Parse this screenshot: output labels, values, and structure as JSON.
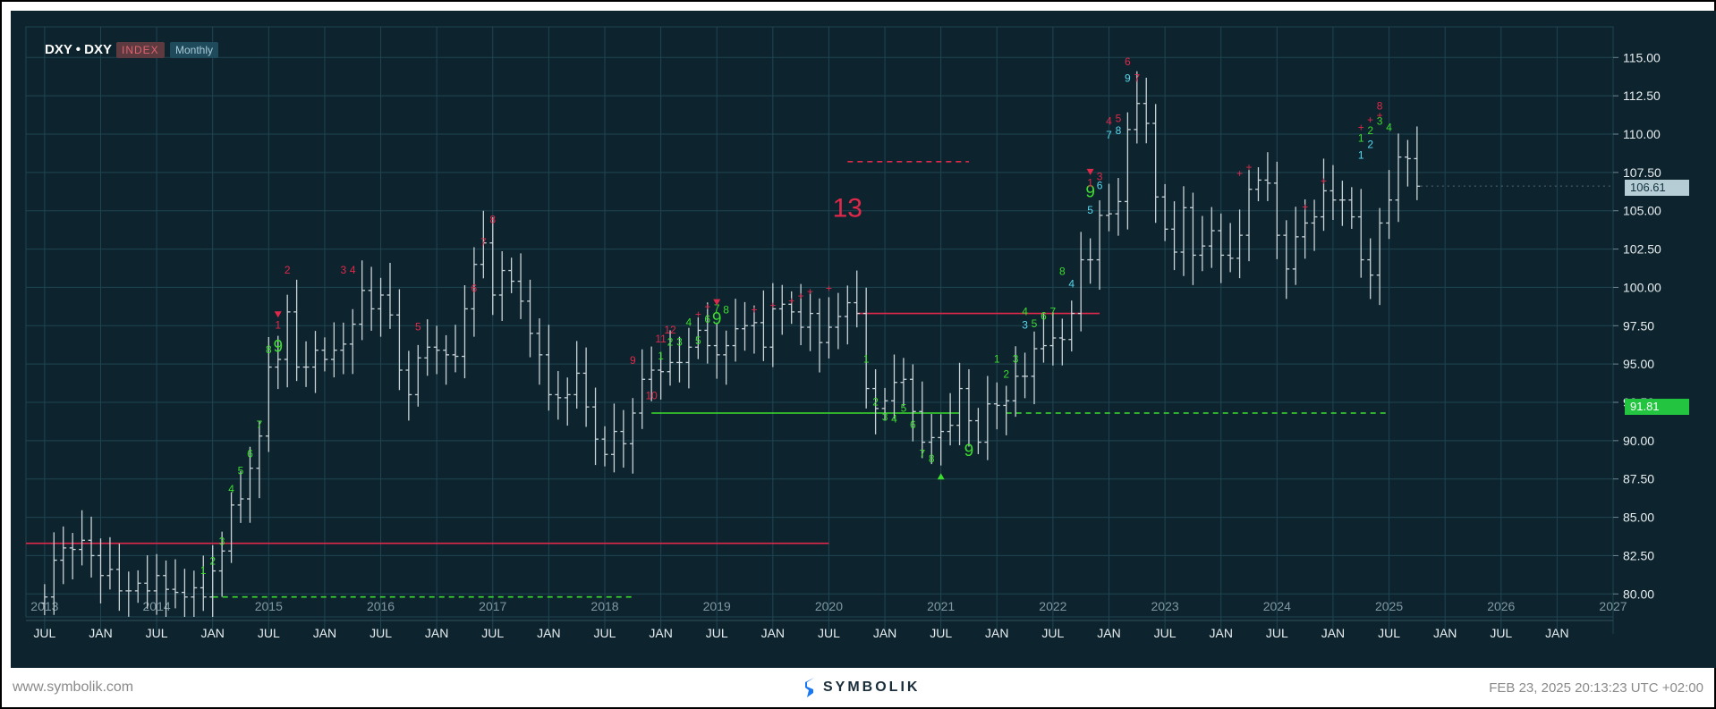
{
  "header": {
    "symbol": "DXY • DXY",
    "badge_index": "INDEX",
    "badge_period": "Monthly"
  },
  "footer": {
    "website": "www.symbolik.com",
    "brand": "SYMBOLIK",
    "timestamp": "FEB 23, 2025 20:13:23 UTC +02:00"
  },
  "price_tags": {
    "last_price": "106.61",
    "level": "91.81"
  },
  "colors": {
    "background": "#0d242e",
    "grid": "#1f4552",
    "bars": "#c9d3d8",
    "buy_setup": "#3ddc2e",
    "sell_setup": "#e0284a",
    "countdown_cyan": "#58d8ee",
    "tdst_support": "#3ddc2e",
    "tdst_resistance": "#e0284a"
  },
  "chart_data": {
    "type": "ohlc",
    "title": "DXY • DXY",
    "interval": "Monthly",
    "x_range": [
      "2012-11",
      "2027-01"
    ],
    "ylim": [
      78.5,
      117.0
    ],
    "y_ticks": [
      "80.00",
      "82.50",
      "85.00",
      "87.50",
      "90.00",
      "92.50",
      "95.00",
      "97.50",
      "100.00",
      "102.50",
      "105.00",
      "107.50",
      "110.00",
      "112.50",
      "115.00"
    ],
    "year_labels": [
      "2013",
      "2014",
      "2015",
      "2016",
      "2017",
      "2018",
      "2019",
      "2020",
      "2021",
      "2022",
      "2023",
      "2024",
      "2025",
      "2026",
      "2027"
    ],
    "month_labels": [
      "JUL",
      "JAN",
      "JUL",
      "JAN",
      "JUL",
      "JAN",
      "JUL",
      "JAN",
      "JUL",
      "JAN",
      "JUL",
      "JAN",
      "JUL",
      "JAN",
      "JUL",
      "JAN",
      "JUL",
      "JAN",
      "JUL",
      "JAN",
      "JUL",
      "JAN",
      "JUL",
      "JAN",
      "JUL",
      "JAN",
      "JUL",
      "JAN"
    ],
    "grid": true,
    "last_price": 106.61,
    "bars": {
      "start": "2013-01",
      "close": [
        79.8,
        82.2,
        83.0,
        82.9,
        83.5,
        82.5,
        81.2,
        81.6,
        80.2,
        80.2,
        80.7,
        80.2,
        81.2,
        80.3,
        80.1,
        79.8,
        80.4,
        79.8,
        81.5,
        82.8,
        85.8,
        86.2,
        88.2,
        90.3,
        94.8,
        95.3,
        98.4,
        94.8,
        94.8,
        95.9,
        95.3,
        95.9,
        96.3,
        97.6,
        99.8,
        98.6,
        99.5,
        98.2,
        94.6,
        93.0,
        95.4,
        96.1,
        95.9,
        95.6,
        95.5,
        98.6,
        101.5,
        102.9,
        99.5,
        101.1,
        100.4,
        99.1,
        97.0,
        95.6,
        93.0,
        92.8,
        93.0,
        94.4,
        92.2,
        90.1,
        89.1,
        90.6,
        89.8,
        91.8,
        94.0,
        94.6,
        94.5,
        95.1,
        95.1,
        96.1,
        97.2,
        96.2,
        95.6,
        96.2,
        97.3,
        97.5,
        97.7,
        96.1,
        98.6,
        98.9,
        98.4,
        97.4,
        98.3,
        96.4,
        97.4,
        98.1,
        99.0,
        98.3,
        93.4,
        92.1,
        92.6,
        93.8,
        94.0,
        91.9,
        89.9,
        90.2,
        90.6,
        91.0,
        93.4,
        91.3,
        89.9,
        92.4,
        92.3,
        92.6,
        94.2,
        94.2,
        96.0,
        96.2,
        96.7,
        96.6,
        98.3,
        101.8,
        101.8,
        104.7,
        104.8,
        105.6,
        110.3,
        112.0,
        110.7,
        105.9,
        103.8,
        102.3,
        105.2,
        102.1,
        102.7,
        103.7,
        102.1,
        101.9,
        103.4,
        106.4,
        107.0,
        106.8,
        103.4,
        101.2,
        103.3,
        104.2,
        104.6,
        106.3,
        105.7,
        105.7,
        104.6,
        101.8,
        100.8,
        104.2,
        105.7,
        108.5,
        108.4,
        106.6
      ],
      "high_offset": 1.4,
      "low_offset": 1.3,
      "note": "Approximate monthly OHLC bars Jan 2013 – Feb 2025 read from chart"
    },
    "annotations": [
      {
        "date": "2020-03",
        "text": "13",
        "price": 104.6,
        "color": "sell",
        "size": "large"
      },
      {
        "date": "2015-02",
        "text": "9",
        "price": 95.8,
        "color": "buy",
        "size": "medium"
      },
      {
        "date": "2019-01",
        "text": "9",
        "price": 97.6,
        "color": "buy",
        "size": "medium"
      },
      {
        "date": "2021-04",
        "text": "9",
        "price": 89.0,
        "color": "buy",
        "size": "medium"
      },
      {
        "date": "2022-05",
        "text": "9",
        "price": 105.9,
        "color": "buy",
        "size": "medium"
      },
      {
        "date": "2022-09",
        "text": "9",
        "price": 113.4,
        "color": "cyan",
        "size": "small"
      },
      {
        "date": "2022-09",
        "text": "6",
        "price": 114.5,
        "color": "sell",
        "size": "small"
      },
      {
        "date": "2022-08",
        "text": "8",
        "price": 110.0,
        "color": "cyan",
        "size": "small"
      },
      {
        "date": "2022-07",
        "text": "7",
        "price": 109.7,
        "color": "cyan",
        "size": "small"
      },
      {
        "date": "2022-06",
        "text": "6",
        "price": 106.4,
        "color": "cyan",
        "size": "small"
      },
      {
        "date": "2022-05",
        "text": "5",
        "price": 104.8,
        "color": "cyan",
        "size": "small"
      },
      {
        "date": "2022-03",
        "text": "4",
        "price": 100.0,
        "color": "cyan",
        "size": "small"
      },
      {
        "date": "2021-10",
        "text": "3",
        "price": 97.3,
        "color": "cyan",
        "size": "small"
      },
      {
        "date": "2022-10",
        "text": "7",
        "price": 113.4,
        "color": "sell",
        "size": "small"
      },
      {
        "date": "2022-08",
        "text": "5",
        "price": 110.8,
        "color": "sell",
        "size": "small"
      },
      {
        "date": "2022-07",
        "text": "4",
        "price": 110.6,
        "color": "sell",
        "size": "small"
      },
      {
        "date": "2022-06",
        "text": "3",
        "price": 107.0,
        "color": "sell",
        "size": "small"
      },
      {
        "date": "2022-05",
        "text": "1",
        "price": 106.6,
        "color": "sell",
        "size": "small"
      },
      {
        "date": "2024-12",
        "text": "8",
        "price": 111.6,
        "color": "sell",
        "size": "small"
      },
      {
        "date": "2024-12",
        "text": "3",
        "price": 110.6,
        "color": "buy",
        "size": "small"
      },
      {
        "date": "2025-01",
        "text": "4",
        "price": 110.2,
        "color": "buy",
        "size": "small"
      },
      {
        "date": "2024-11",
        "text": "2",
        "price": 110.0,
        "color": "buy",
        "size": "small"
      },
      {
        "date": "2024-10",
        "text": "1",
        "price": 109.5,
        "color": "buy",
        "size": "small"
      },
      {
        "date": "2024-11",
        "text": "2",
        "price": 109.1,
        "color": "cyan",
        "size": "small"
      },
      {
        "date": "2024-10",
        "text": "1",
        "price": 108.4,
        "color": "cyan",
        "size": "small"
      },
      {
        "date": "2017-01",
        "text": "8",
        "price": 104.2,
        "color": "sell",
        "size": "small"
      },
      {
        "date": "2016-12",
        "text": "7",
        "price": 102.7,
        "color": "sell",
        "size": "small"
      },
      {
        "date": "2016-11",
        "text": "6",
        "price": 99.7,
        "color": "sell",
        "size": "small"
      },
      {
        "date": "2016-05",
        "text": "5",
        "price": 97.2,
        "color": "sell",
        "size": "small"
      },
      {
        "date": "2015-10",
        "text": "4",
        "price": 100.9,
        "color": "sell",
        "size": "small"
      },
      {
        "date": "2015-09",
        "text": "3",
        "price": 100.9,
        "color": "sell",
        "size": "small"
      },
      {
        "date": "2015-03",
        "text": "2",
        "price": 100.9,
        "color": "sell",
        "size": "small"
      },
      {
        "date": "2015-02",
        "text": "1",
        "price": 97.3,
        "color": "sell",
        "size": "small"
      },
      {
        "date": "2015-01",
        "text": "8",
        "price": 95.7,
        "color": "buy",
        "size": "small"
      },
      {
        "date": "2014-12",
        "text": "7",
        "price": 90.8,
        "color": "buy",
        "size": "small"
      },
      {
        "date": "2014-11",
        "text": "6",
        "price": 88.9,
        "color": "buy",
        "size": "small"
      },
      {
        "date": "2014-10",
        "text": "5",
        "price": 87.8,
        "color": "buy",
        "size": "small"
      },
      {
        "date": "2014-09",
        "text": "4",
        "price": 86.6,
        "color": "buy",
        "size": "small"
      },
      {
        "date": "2014-08",
        "text": "3",
        "price": 83.2,
        "color": "buy",
        "size": "small"
      },
      {
        "date": "2014-07",
        "text": "2",
        "price": 81.9,
        "color": "buy",
        "size": "small"
      },
      {
        "date": "2014-06",
        "text": "1",
        "price": 81.3,
        "color": "buy",
        "size": "small"
      },
      {
        "date": "2018-04",
        "text": "9",
        "price": 95.0,
        "color": "sell",
        "size": "small"
      },
      {
        "date": "2018-06",
        "text": "10",
        "price": 92.7,
        "color": "sell",
        "size": "small"
      },
      {
        "date": "2018-07",
        "text": "11",
        "price": 96.4,
        "color": "sell",
        "size": "small"
      },
      {
        "date": "2018-08",
        "text": "12",
        "price": 97.0,
        "color": "sell",
        "size": "small"
      },
      {
        "date": "2018-07",
        "text": "1",
        "price": 95.3,
        "color": "buy",
        "size": "small"
      },
      {
        "date": "2018-08",
        "text": "2",
        "price": 96.2,
        "color": "buy",
        "size": "small"
      },
      {
        "date": "2018-09",
        "text": "3",
        "price": 96.2,
        "color": "buy",
        "size": "small"
      },
      {
        "date": "2018-10",
        "text": "4",
        "price": 97.5,
        "color": "buy",
        "size": "small"
      },
      {
        "date": "2018-11",
        "text": "5",
        "price": 96.3,
        "color": "buy",
        "size": "small"
      },
      {
        "date": "2018-12",
        "text": "6",
        "price": 97.7,
        "color": "buy",
        "size": "small"
      },
      {
        "date": "2019-01",
        "text": "7",
        "price": 98.4,
        "color": "buy",
        "size": "small"
      },
      {
        "date": "2019-02",
        "text": "8",
        "price": 98.3,
        "color": "buy",
        "size": "small"
      },
      {
        "date": "2020-05",
        "text": "1",
        "price": 95.1,
        "color": "buy",
        "size": "small"
      },
      {
        "date": "2020-06",
        "text": "2",
        "price": 92.3,
        "color": "buy",
        "size": "small"
      },
      {
        "date": "2020-07",
        "text": "3",
        "price": 91.3,
        "color": "buy",
        "size": "small"
      },
      {
        "date": "2020-08",
        "text": "4",
        "price": 91.2,
        "color": "buy",
        "size": "small"
      },
      {
        "date": "2020-09",
        "text": "5",
        "price": 91.9,
        "color": "buy",
        "size": "small"
      },
      {
        "date": "2020-10",
        "text": "6",
        "price": 90.8,
        "color": "buy",
        "size": "small"
      },
      {
        "date": "2020-11",
        "text": "7",
        "price": 88.9,
        "color": "buy",
        "size": "small"
      },
      {
        "date": "2020-12",
        "text": "8",
        "price": 88.6,
        "color": "buy",
        "size": "small"
      },
      {
        "date": "2021-07",
        "text": "1",
        "price": 95.1,
        "color": "buy",
        "size": "small"
      },
      {
        "date": "2021-08",
        "text": "2",
        "price": 94.1,
        "color": "buy",
        "size": "small"
      },
      {
        "date": "2021-09",
        "text": "3",
        "price": 95.1,
        "color": "buy",
        "size": "small"
      },
      {
        "date": "2021-10",
        "text": "4",
        "price": 98.2,
        "color": "buy",
        "size": "small"
      },
      {
        "date": "2021-11",
        "text": "5",
        "price": 97.4,
        "color": "buy",
        "size": "small"
      },
      {
        "date": "2021-12",
        "text": "6",
        "price": 97.9,
        "color": "buy",
        "size": "small"
      },
      {
        "date": "2022-01",
        "text": "7",
        "price": 98.2,
        "color": "buy",
        "size": "small"
      },
      {
        "date": "2022-02",
        "text": "8",
        "price": 100.8,
        "color": "buy",
        "size": "small"
      },
      {
        "date": "2019-09",
        "text": "+",
        "price": 98.9,
        "color": "sell",
        "size": "tiny"
      },
      {
        "date": "2019-07",
        "text": "+",
        "price": 98.6,
        "color": "sell",
        "size": "tiny"
      },
      {
        "date": "2019-05",
        "text": "+",
        "price": 98.3,
        "color": "sell",
        "size": "tiny"
      },
      {
        "date": "2018-12",
        "text": "+",
        "price": 98.5,
        "color": "sell",
        "size": "tiny"
      },
      {
        "date": "2018-11",
        "text": "+",
        "price": 98.0,
        "color": "sell",
        "size": "tiny"
      },
      {
        "date": "2019-10",
        "text": "+",
        "price": 99.2,
        "color": "sell",
        "size": "tiny"
      },
      {
        "date": "2019-11",
        "text": "+",
        "price": 99.5,
        "color": "sell",
        "size": "tiny"
      },
      {
        "date": "2020-01",
        "text": "+",
        "price": 99.7,
        "color": "sell",
        "size": "tiny"
      },
      {
        "date": "2023-09",
        "text": "+",
        "price": 107.2,
        "color": "sell",
        "size": "tiny"
      },
      {
        "date": "2023-10",
        "text": "+",
        "price": 107.6,
        "color": "sell",
        "size": "tiny"
      },
      {
        "date": "2024-06",
        "text": "+",
        "price": 106.7,
        "color": "sell",
        "size": "tiny"
      },
      {
        "date": "2024-04",
        "text": "+",
        "price": 105.0,
        "color": "sell",
        "size": "tiny"
      },
      {
        "date": "2024-10",
        "text": "+",
        "price": 110.2,
        "color": "sell",
        "size": "tiny"
      },
      {
        "date": "2024-11",
        "text": "+",
        "price": 110.7,
        "color": "sell",
        "size": "tiny"
      },
      {
        "date": "2024-12",
        "text": "+",
        "price": 111.0,
        "color": "sell",
        "size": "tiny"
      }
    ],
    "arrows": [
      {
        "date": "2015-02",
        "price": 98.2,
        "direction": "down",
        "color": "sell"
      },
      {
        "date": "2019-01",
        "price": 99.0,
        "direction": "down",
        "color": "sell"
      },
      {
        "date": "2022-05",
        "price": 107.5,
        "direction": "down",
        "color": "sell"
      },
      {
        "date": "2021-01",
        "price": 87.7,
        "direction": "up",
        "color": "buy"
      }
    ],
    "levels": [
      {
        "name": "TDST resistance",
        "price": 83.3,
        "from": "2012-11",
        "to": "2020-01",
        "style": "solid",
        "color": "sell"
      },
      {
        "name": "TDST support",
        "price": 79.8,
        "from": "2014-07",
        "to": "2018-04",
        "style": "dashed",
        "color": "buy"
      },
      {
        "name": "TDST support",
        "price": 91.8,
        "from": "2018-06",
        "to": "2021-03",
        "style": "solid",
        "color": "buy"
      },
      {
        "name": "TDST resistance",
        "price": 98.3,
        "from": "2020-04",
        "to": "2022-06",
        "style": "solid",
        "color": "sell"
      },
      {
        "name": "risk level",
        "price": 108.2,
        "from": "2020-03",
        "to": "2021-04",
        "style": "dashed",
        "color": "sell"
      },
      {
        "name": "TDST support",
        "price": 91.8,
        "from": "2021-08",
        "to": "2025-01",
        "style": "dashed",
        "color": "buy"
      }
    ]
  }
}
